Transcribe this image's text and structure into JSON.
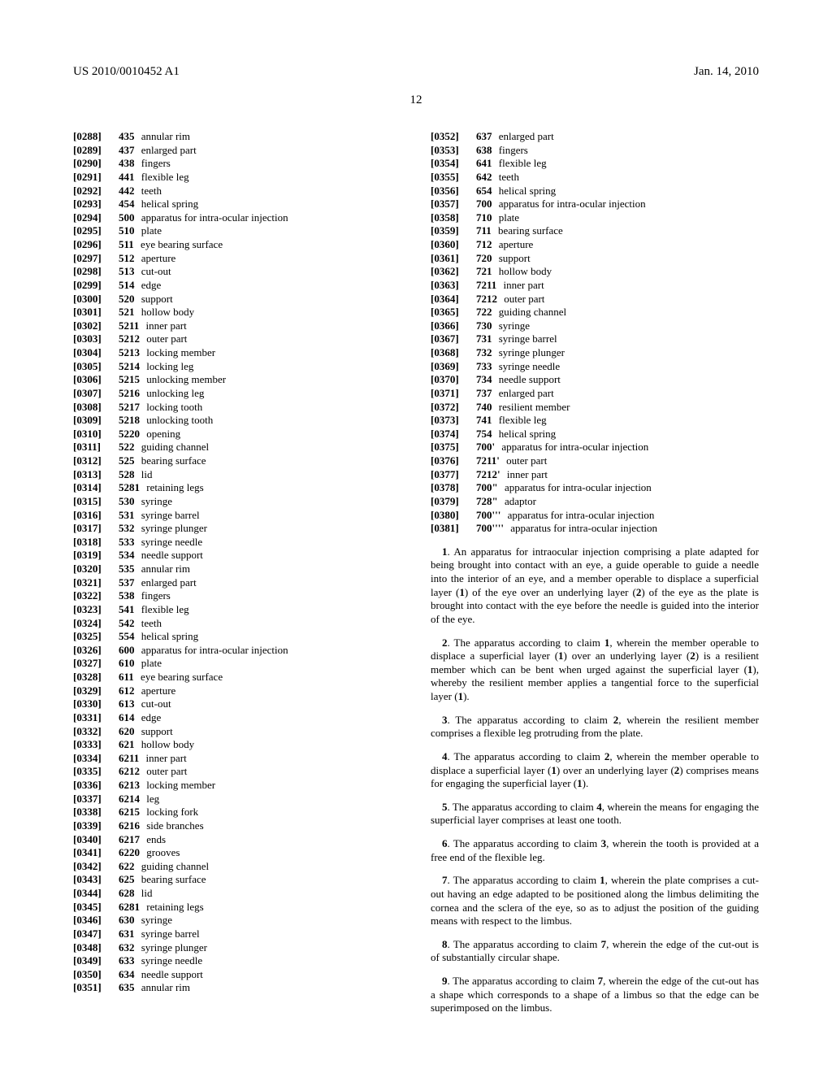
{
  "header": {
    "left": "US 2010/0010452 A1",
    "right": "Jan. 14, 2010"
  },
  "page_number": "12",
  "left_column": [
    {
      "p": "[0288]",
      "n": "435",
      "d": "annular rim"
    },
    {
      "p": "[0289]",
      "n": "437",
      "d": "enlarged part"
    },
    {
      "p": "[0290]",
      "n": "438",
      "d": "fingers"
    },
    {
      "p": "[0291]",
      "n": "441",
      "d": "flexible leg"
    },
    {
      "p": "[0292]",
      "n": "442",
      "d": "teeth"
    },
    {
      "p": "[0293]",
      "n": "454",
      "d": "helical spring"
    },
    {
      "p": "[0294]",
      "n": "500",
      "d": "apparatus for intra-ocular injection"
    },
    {
      "p": "[0295]",
      "n": "510",
      "d": "plate"
    },
    {
      "p": "[0296]",
      "n": "511",
      "d": "eye bearing surface"
    },
    {
      "p": "[0297]",
      "n": "512",
      "d": "aperture"
    },
    {
      "p": "[0298]",
      "n": "513",
      "d": "cut-out"
    },
    {
      "p": "[0299]",
      "n": "514",
      "d": "edge"
    },
    {
      "p": "[0300]",
      "n": "520",
      "d": "support"
    },
    {
      "p": "[0301]",
      "n": "521",
      "d": "hollow body"
    },
    {
      "p": "[0302]",
      "n": "5211",
      "d": "inner part"
    },
    {
      "p": "[0303]",
      "n": "5212",
      "d": "outer part"
    },
    {
      "p": "[0304]",
      "n": "5213",
      "d": "locking member"
    },
    {
      "p": "[0305]",
      "n": "5214",
      "d": "locking leg"
    },
    {
      "p": "[0306]",
      "n": "5215",
      "d": "unlocking member"
    },
    {
      "p": "[0307]",
      "n": "5216",
      "d": "unlocking leg"
    },
    {
      "p": "[0308]",
      "n": "5217",
      "d": "locking tooth"
    },
    {
      "p": "[0309]",
      "n": "5218",
      "d": "unlocking tooth"
    },
    {
      "p": "[0310]",
      "n": "5220",
      "d": "opening"
    },
    {
      "p": "[0311]",
      "n": "522",
      "d": "guiding channel"
    },
    {
      "p": "[0312]",
      "n": "525",
      "d": "bearing surface"
    },
    {
      "p": "[0313]",
      "n": "528",
      "d": "lid"
    },
    {
      "p": "[0314]",
      "n": "5281",
      "d": "retaining legs"
    },
    {
      "p": "[0315]",
      "n": "530",
      "d": "syringe"
    },
    {
      "p": "[0316]",
      "n": "531",
      "d": "syringe barrel"
    },
    {
      "p": "[0317]",
      "n": "532",
      "d": "syringe plunger"
    },
    {
      "p": "[0318]",
      "n": "533",
      "d": "syringe needle"
    },
    {
      "p": "[0319]",
      "n": "534",
      "d": "needle support"
    },
    {
      "p": "[0320]",
      "n": "535",
      "d": "annular rim"
    },
    {
      "p": "[0321]",
      "n": "537",
      "d": "enlarged part"
    },
    {
      "p": "[0322]",
      "n": "538",
      "d": "fingers"
    },
    {
      "p": "[0323]",
      "n": "541",
      "d": "flexible leg"
    },
    {
      "p": "[0324]",
      "n": "542",
      "d": "teeth"
    },
    {
      "p": "[0325]",
      "n": "554",
      "d": "helical spring"
    },
    {
      "p": "[0326]",
      "n": "600",
      "d": "apparatus for intra-ocular injection"
    },
    {
      "p": "[0327]",
      "n": "610",
      "d": "plate"
    },
    {
      "p": "[0328]",
      "n": "611",
      "d": "eye bearing surface"
    },
    {
      "p": "[0329]",
      "n": "612",
      "d": "aperture"
    },
    {
      "p": "[0330]",
      "n": "613",
      "d": "cut-out"
    },
    {
      "p": "[0331]",
      "n": "614",
      "d": "edge"
    },
    {
      "p": "[0332]",
      "n": "620",
      "d": "support"
    },
    {
      "p": "[0333]",
      "n": "621",
      "d": "hollow body"
    },
    {
      "p": "[0334]",
      "n": "6211",
      "d": "inner part"
    },
    {
      "p": "[0335]",
      "n": "6212",
      "d": "outer part"
    },
    {
      "p": "[0336]",
      "n": "6213",
      "d": "locking member"
    },
    {
      "p": "[0337]",
      "n": "6214",
      "d": "leg"
    },
    {
      "p": "[0338]",
      "n": "6215",
      "d": "locking fork"
    },
    {
      "p": "[0339]",
      "n": "6216",
      "d": "side branches"
    },
    {
      "p": "[0340]",
      "n": "6217",
      "d": "ends"
    },
    {
      "p": "[0341]",
      "n": "6220",
      "d": "grooves"
    },
    {
      "p": "[0342]",
      "n": "622",
      "d": "guiding channel"
    },
    {
      "p": "[0343]",
      "n": "625",
      "d": "bearing surface"
    },
    {
      "p": "[0344]",
      "n": "628",
      "d": "lid"
    },
    {
      "p": "[0345]",
      "n": "6281",
      "d": "retaining legs"
    },
    {
      "p": "[0346]",
      "n": "630",
      "d": "syringe"
    },
    {
      "p": "[0347]",
      "n": "631",
      "d": "syringe barrel"
    },
    {
      "p": "[0348]",
      "n": "632",
      "d": "syringe plunger"
    },
    {
      "p": "[0349]",
      "n": "633",
      "d": "syringe needle"
    },
    {
      "p": "[0350]",
      "n": "634",
      "d": "needle support"
    },
    {
      "p": "[0351]",
      "n": "635",
      "d": "annular rim"
    }
  ],
  "right_column_refs": [
    {
      "p": "[0352]",
      "n": "637",
      "d": "enlarged part"
    },
    {
      "p": "[0353]",
      "n": "638",
      "d": "fingers"
    },
    {
      "p": "[0354]",
      "n": "641",
      "d": "flexible leg"
    },
    {
      "p": "[0355]",
      "n": "642",
      "d": "teeth"
    },
    {
      "p": "[0356]",
      "n": "654",
      "d": "helical spring"
    },
    {
      "p": "[0357]",
      "n": "700",
      "d": "apparatus for intra-ocular injection"
    },
    {
      "p": "[0358]",
      "n": "710",
      "d": "plate"
    },
    {
      "p": "[0359]",
      "n": "711",
      "d": "bearing surface"
    },
    {
      "p": "[0360]",
      "n": "712",
      "d": "aperture"
    },
    {
      "p": "[0361]",
      "n": "720",
      "d": "support"
    },
    {
      "p": "[0362]",
      "n": "721",
      "d": "hollow body"
    },
    {
      "p": "[0363]",
      "n": "7211",
      "d": "inner part"
    },
    {
      "p": "[0364]",
      "n": "7212",
      "d": "outer part"
    },
    {
      "p": "[0365]",
      "n": "722",
      "d": "guiding channel"
    },
    {
      "p": "[0366]",
      "n": "730",
      "d": "syringe"
    },
    {
      "p": "[0367]",
      "n": "731",
      "d": "syringe barrel"
    },
    {
      "p": "[0368]",
      "n": "732",
      "d": "syringe plunger"
    },
    {
      "p": "[0369]",
      "n": "733",
      "d": "syringe needle"
    },
    {
      "p": "[0370]",
      "n": "734",
      "d": "needle support"
    },
    {
      "p": "[0371]",
      "n": "737",
      "d": "enlarged part"
    },
    {
      "p": "[0372]",
      "n": "740",
      "d": "resilient member"
    },
    {
      "p": "[0373]",
      "n": "741",
      "d": "flexible leg"
    },
    {
      "p": "[0374]",
      "n": "754",
      "d": "helical spring"
    },
    {
      "p": "[0375]",
      "n": "700'",
      "d": "apparatus for intra-ocular injection"
    },
    {
      "p": "[0376]",
      "n": "7211'",
      "d": "outer part"
    },
    {
      "p": "[0377]",
      "n": "7212'",
      "d": "inner part"
    },
    {
      "p": "[0378]",
      "n": "700\"",
      "d": "apparatus for intra-ocular injection"
    },
    {
      "p": "[0379]",
      "n": "728\"",
      "d": "adaptor"
    },
    {
      "p": "[0380]",
      "n": "700'''",
      "d": "apparatus for intra-ocular injection"
    },
    {
      "p": "[0381]",
      "n": "700''''",
      "d": "apparatus for intra-ocular injection"
    }
  ],
  "claims": [
    {
      "n": "1",
      "t": ". An apparatus for intraocular injection comprising a plate adapted for being brought into contact with an eye, a guide operable to guide a needle into the interior of an eye, and a member operable to displace a superficial layer (1) of the eye over an underlying layer (2) of the eye as the plate is brought into contact with the eye before the needle is guided into the interior of the eye."
    },
    {
      "n": "2",
      "t": ". The apparatus according to claim 1, wherein the member operable to displace a superficial layer (1) over an underlying layer (2) is a resilient member which can be bent when urged against the superficial layer (1), whereby the resilient member applies a tangential force to the superficial layer (1)."
    },
    {
      "n": "3",
      "t": ". The apparatus according to claim 2, wherein the resilient member comprises a flexible leg protruding from the plate."
    },
    {
      "n": "4",
      "t": ". The apparatus according to claim 2, wherein the member operable to displace a superficial layer (1) over an underlying layer (2) comprises means for engaging the superficial layer (1)."
    },
    {
      "n": "5",
      "t": ". The apparatus according to claim 4, wherein the means for engaging the superficial layer comprises at least one tooth."
    },
    {
      "n": "6",
      "t": ". The apparatus according to claim 3, wherein the tooth is provided at a free end of the flexible leg."
    },
    {
      "n": "7",
      "t": ". The apparatus according to claim 1, wherein the plate comprises a cut-out having an edge adapted to be positioned along the limbus delimiting the cornea and the sclera of the eye, so as to adjust the position of the guiding means with respect to the limbus."
    },
    {
      "n": "8",
      "t": ". The apparatus according to claim 7, wherein the edge of the cut-out is of substantially circular shape."
    },
    {
      "n": "9",
      "t": ". The apparatus according to claim 7, wherein the edge of the cut-out has a shape which corresponds to a shape of a limbus so that the edge can be superimposed on the limbus."
    }
  ]
}
